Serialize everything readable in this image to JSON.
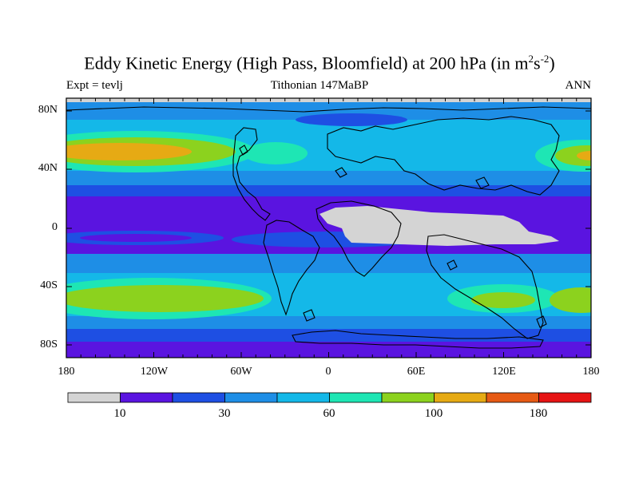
{
  "title": {
    "main": "Eddy Kinetic Energy (High Pass, Bloomfield) at 200 hPa (in m",
    "sup1": "2",
    "mid": "s",
    "sup2": "-2",
    "close": ")"
  },
  "left_label": "Expt = tevlj",
  "center_label": "Tithonian 147MaBP",
  "right_label": "ANN",
  "y_ticks": [
    "80N",
    "40N",
    "0",
    "40S",
    "80S"
  ],
  "x_ticks": [
    "180",
    "120W",
    "60W",
    "0",
    "60E",
    "120E",
    "180"
  ],
  "colorbar": {
    "colors": [
      "#d4d4d4",
      "#5a14e0",
      "#1e4fe3",
      "#1e8ee6",
      "#14b8e8",
      "#1ee6b4",
      "#8cd21e",
      "#e6aa14",
      "#e65a14",
      "#e61414"
    ],
    "labels": [
      "10",
      "30",
      "60",
      "100",
      "180"
    ]
  },
  "map_colors": {
    "band0": "#d4d4d4",
    "band1": "#5a14e0",
    "band2": "#1e4fe3",
    "band3": "#1e8ee6",
    "band4": "#14b8e8",
    "band5": "#1ee6b4",
    "band6": "#8cd21e",
    "band7": "#e6aa14"
  }
}
